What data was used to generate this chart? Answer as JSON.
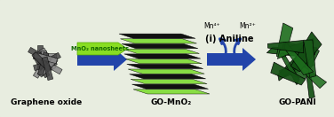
{
  "bg_color": "#e8ede0",
  "border_color": "#a0b8c8",
  "arrow_color": "#2244aa",
  "go_mno2_stripe_colors": [
    "#88dd44",
    "#111111"
  ],
  "graphene_color_dark": "#444444",
  "graphene_color_mid": "#888888",
  "mno2_label_text": "MnO₂ nanosheets",
  "arrow1_label": "(i) Aniline",
  "mn4_label": "Mn⁴⁺",
  "mn2_label": "Mn²⁺",
  "label_go": "Graphene oxide",
  "label_gomno2": "GO-MnO₂",
  "label_gopani": "GO-PANI",
  "fig_width": 3.76,
  "fig_height": 1.32,
  "dpi": 100
}
